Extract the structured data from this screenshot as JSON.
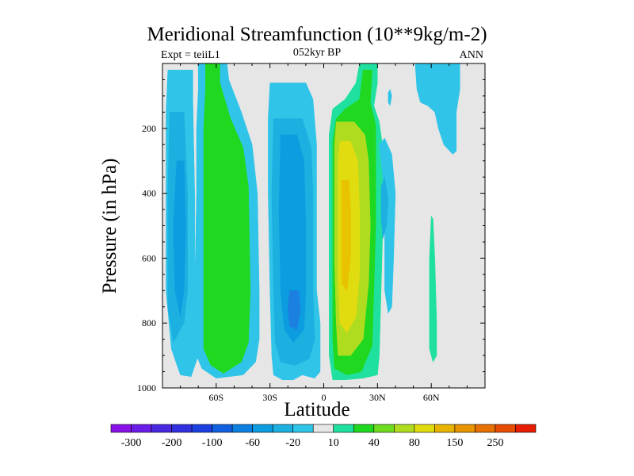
{
  "chart_data": {
    "type": "heatmap",
    "title": "Meridional Streamfunction (10**9kg/m-2)",
    "subtitle_left": "Expt = teiiL1",
    "subtitle_center": "052kyr BP",
    "subtitle_right": "ANN",
    "xlabel": "Latitude",
    "ylabel": "Pressure (in hPa)",
    "xlim": [
      -90,
      90
    ],
    "ylim": [
      0,
      1000
    ],
    "y_reversed": true,
    "x_ticks": [
      {
        "value": -60,
        "label": "60S"
      },
      {
        "value": -30,
        "label": "30S"
      },
      {
        "value": 0,
        "label": "0"
      },
      {
        "value": 30,
        "label": "30N"
      },
      {
        "value": 60,
        "label": "60N"
      }
    ],
    "y_ticks": [
      {
        "value": 200,
        "label": "200"
      },
      {
        "value": 400,
        "label": "400"
      },
      {
        "value": 600,
        "label": "600"
      },
      {
        "value": 800,
        "label": "800"
      },
      {
        "value": 1000,
        "label": "1000"
      }
    ],
    "background_color": "#e6e6e6",
    "colorbar": {
      "colors": [
        "#8a10e8",
        "#6a1ce8",
        "#4a28e0",
        "#3030e0",
        "#1c40e0",
        "#1060e0",
        "#0c80e0",
        "#0c9ce0",
        "#1cb0e0",
        "#30c4e8",
        "#e6e6e6",
        "#20e0a0",
        "#20d820",
        "#70dc20",
        "#b0dc20",
        "#e0dc10",
        "#e8b400",
        "#e89400",
        "#e87000",
        "#e84c00",
        "#e81c00"
      ],
      "labels": [
        "-300",
        "-200",
        "-100",
        "-60",
        "-20",
        "10",
        "40",
        "80",
        "150",
        "250"
      ]
    },
    "contour_regions": [
      {
        "band": "-20",
        "color": "#30c4e8",
        "polygon": [
          [
            -87,
            20
          ],
          [
            -73,
            20
          ],
          [
            -73,
            120
          ],
          [
            -72,
            400
          ],
          [
            -72,
            700
          ],
          [
            -70,
            900
          ],
          [
            -74,
            965
          ],
          [
            -80,
            960
          ],
          [
            -85,
            880
          ],
          [
            -88,
            700
          ],
          [
            -88,
            400
          ],
          [
            -88,
            150
          ]
        ]
      },
      {
        "band": "-60",
        "color": "#1cb0e0",
        "polygon": [
          [
            -86,
            150
          ],
          [
            -78,
            150
          ],
          [
            -76,
            400
          ],
          [
            -76,
            700
          ],
          [
            -78,
            800
          ],
          [
            -84,
            860
          ],
          [
            -87,
            750
          ],
          [
            -87,
            400
          ]
        ]
      },
      {
        "band": "-100",
        "color": "#0c9ce0",
        "polygon": [
          [
            -82,
            300
          ],
          [
            -78,
            300
          ],
          [
            -77,
            500
          ],
          [
            -78,
            700
          ],
          [
            -80,
            780
          ],
          [
            -83,
            700
          ],
          [
            -84,
            500
          ]
        ]
      },
      {
        "band": "-20",
        "color": "#30c4e8",
        "polygon": [
          [
            -70,
            0
          ],
          [
            -54,
            0
          ],
          [
            -53,
            50
          ],
          [
            -46,
            150
          ],
          [
            -40,
            250
          ],
          [
            -37,
            400
          ],
          [
            -36,
            700
          ],
          [
            -36,
            850
          ],
          [
            -38,
            920
          ],
          [
            -45,
            960
          ],
          [
            -60,
            970
          ],
          [
            -68,
            940
          ],
          [
            -71,
            900
          ],
          [
            -72,
            700
          ],
          [
            -71,
            400
          ],
          [
            -71,
            200
          ],
          [
            -70,
            80
          ]
        ]
      },
      {
        "band": "40",
        "color": "#20d820",
        "polygon": [
          [
            -66,
            0
          ],
          [
            -58,
            0
          ],
          [
            -58,
            60
          ],
          [
            -52,
            170
          ],
          [
            -45,
            260
          ],
          [
            -42,
            380
          ],
          [
            -41,
            700
          ],
          [
            -42,
            860
          ],
          [
            -46,
            920
          ],
          [
            -56,
            955
          ],
          [
            -63,
            930
          ],
          [
            -67,
            880
          ],
          [
            -67,
            700
          ],
          [
            -67,
            400
          ],
          [
            -67,
            200
          ],
          [
            -66,
            80
          ]
        ]
      },
      {
        "band": "-20",
        "color": "#30c4e8",
        "polygon": [
          [
            -30,
            60
          ],
          [
            -10,
            60
          ],
          [
            -6,
            110
          ],
          [
            -4,
            250
          ],
          [
            -4,
            400
          ],
          [
            -4,
            700
          ],
          [
            -2,
            800
          ],
          [
            -2,
            950
          ],
          [
            -5,
            970
          ],
          [
            -12,
            960
          ],
          [
            -17,
            975
          ],
          [
            -23,
            975
          ],
          [
            -28,
            960
          ],
          [
            -29,
            900
          ],
          [
            -30,
            700
          ],
          [
            -31,
            400
          ],
          [
            -31,
            170
          ]
        ]
      },
      {
        "band": "-60",
        "color": "#1cb0e0",
        "polygon": [
          [
            -28,
            170
          ],
          [
            -12,
            170
          ],
          [
            -7,
            260
          ],
          [
            -6,
            400
          ],
          [
            -6,
            700
          ],
          [
            -5,
            850
          ],
          [
            -8,
            910
          ],
          [
            -16,
            930
          ],
          [
            -24,
            920
          ],
          [
            -27,
            860
          ],
          [
            -28,
            700
          ],
          [
            -29,
            400
          ]
        ]
      },
      {
        "band": "-100",
        "color": "#0c9ce0",
        "polygon": [
          [
            -24,
            220
          ],
          [
            -15,
            220
          ],
          [
            -11,
            300
          ],
          [
            -10,
            500
          ],
          [
            -10,
            700
          ],
          [
            -11,
            820
          ],
          [
            -17,
            860
          ],
          [
            -22,
            820
          ],
          [
            -24,
            700
          ],
          [
            -25,
            450
          ]
        ]
      },
      {
        "band": "-100",
        "color": "#1c80e0",
        "polygon": [
          [
            -19,
            700
          ],
          [
            -14,
            700
          ],
          [
            -13,
            760
          ],
          [
            -15,
            820
          ],
          [
            -19,
            810
          ],
          [
            -20,
            760
          ]
        ]
      },
      {
        "band": "10",
        "color": "#20e0a0",
        "polygon": [
          [
            20,
            0
          ],
          [
            30,
            0
          ],
          [
            30,
            60
          ],
          [
            28,
            130
          ],
          [
            31,
            180
          ],
          [
            34,
            300
          ],
          [
            33,
            500
          ],
          [
            32,
            700
          ],
          [
            31,
            900
          ],
          [
            30,
            960
          ],
          [
            22,
            970
          ],
          [
            12,
            975
          ],
          [
            5,
            975
          ],
          [
            3,
            900
          ],
          [
            3,
            700
          ],
          [
            3,
            400
          ],
          [
            3,
            220
          ],
          [
            5,
            140
          ],
          [
            12,
            110
          ],
          [
            18,
            60
          ]
        ]
      },
      {
        "band": "40",
        "color": "#20d820",
        "polygon": [
          [
            22,
            20
          ],
          [
            27,
            20
          ],
          [
            26,
            120
          ],
          [
            29,
            190
          ],
          [
            29,
            300
          ],
          [
            29,
            500
          ],
          [
            28,
            700
          ],
          [
            27,
            870
          ],
          [
            21,
            950
          ],
          [
            13,
            960
          ],
          [
            6,
            940
          ],
          [
            5,
            850
          ],
          [
            5,
            700
          ],
          [
            5,
            400
          ],
          [
            5,
            240
          ],
          [
            7,
            170
          ],
          [
            12,
            140
          ],
          [
            20,
            110
          ]
        ]
      },
      {
        "band": "80",
        "color": "#b0dc20",
        "polygon": [
          [
            7,
            180
          ],
          [
            17,
            180
          ],
          [
            23,
            220
          ],
          [
            25,
            300
          ],
          [
            26,
            500
          ],
          [
            25,
            680
          ],
          [
            22,
            850
          ],
          [
            15,
            900
          ],
          [
            8,
            900
          ],
          [
            7,
            800
          ],
          [
            6,
            600
          ],
          [
            6,
            400
          ],
          [
            6,
            250
          ]
        ]
      },
      {
        "band": "150",
        "color": "#e0dc10",
        "polygon": [
          [
            9,
            240
          ],
          [
            15,
            240
          ],
          [
            19,
            300
          ],
          [
            20,
            450
          ],
          [
            20,
            650
          ],
          [
            18,
            780
          ],
          [
            13,
            830
          ],
          [
            9,
            800
          ],
          [
            8,
            650
          ],
          [
            8,
            450
          ],
          [
            8,
            300
          ]
        ]
      },
      {
        "band": "150",
        "color": "#e8c400",
        "polygon": [
          [
            10,
            360
          ],
          [
            14,
            360
          ],
          [
            15,
            450
          ],
          [
            15,
            600
          ],
          [
            13,
            700
          ],
          [
            10,
            680
          ],
          [
            10,
            500
          ]
        ]
      },
      {
        "band": "-20",
        "color": "#30c4e8",
        "polygon": [
          [
            31,
            250
          ],
          [
            34,
            230
          ],
          [
            38,
            280
          ],
          [
            40,
            400
          ],
          [
            39,
            600
          ],
          [
            38,
            750
          ],
          [
            36,
            770
          ],
          [
            34,
            700
          ],
          [
            34,
            500
          ],
          [
            33,
            350
          ]
        ]
      },
      {
        "band": "-60",
        "color": "#1cb0e0",
        "polygon": [
          [
            32,
            380
          ],
          [
            34,
            350
          ],
          [
            36,
            420
          ],
          [
            35,
            500
          ],
          [
            33,
            540
          ],
          [
            32,
            480
          ]
        ]
      },
      {
        "band": "-20",
        "color": "#30c4e8",
        "polygon": [
          [
            36,
            90
          ],
          [
            37,
            80
          ],
          [
            38,
            100
          ],
          [
            37,
            130
          ],
          [
            36,
            120
          ]
        ]
      },
      {
        "band": "-20",
        "color": "#30c4e8",
        "polygon": [
          [
            51,
            0
          ],
          [
            76,
            0
          ],
          [
            76,
            80
          ],
          [
            74,
            150
          ],
          [
            74,
            270
          ],
          [
            72,
            280
          ],
          [
            67,
            250
          ],
          [
            64,
            200
          ],
          [
            62,
            150
          ],
          [
            58,
            130
          ],
          [
            54,
            120
          ],
          [
            52,
            80
          ]
        ]
      },
      {
        "band": "10",
        "color": "#20e0a0",
        "polygon": [
          [
            60,
            470
          ],
          [
            61,
            480
          ],
          [
            62,
            600
          ],
          [
            63,
            800
          ],
          [
            63,
            900
          ],
          [
            61,
            920
          ],
          [
            59,
            880
          ],
          [
            59,
            750
          ],
          [
            59,
            600
          ]
        ]
      }
    ]
  }
}
